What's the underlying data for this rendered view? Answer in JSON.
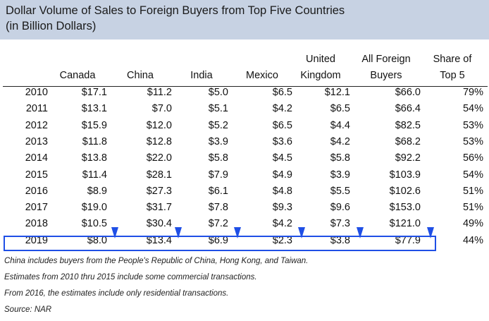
{
  "title": {
    "line1": "Dollar Volume of Sales to Foreign Buyers from Top Five Countries",
    "line2": " (in Billion Dollars)"
  },
  "chart_data": {
    "type": "table",
    "columns": [
      {
        "line1": "",
        "line2": "Canada"
      },
      {
        "line1": "",
        "line2": "China"
      },
      {
        "line1": "",
        "line2": "India"
      },
      {
        "line1": "",
        "line2": "Mexico"
      },
      {
        "line1": "United",
        "line2": "Kingdom"
      },
      {
        "line1": "All Foreign",
        "line2": "Buyers"
      },
      {
        "line1": "Share of",
        "line2": "Top 5"
      }
    ],
    "rows": [
      {
        "year": "2010",
        "values": [
          "$17.1",
          "$11.2",
          "$5.0",
          "$6.5",
          "$12.1",
          "$66.0",
          "79%"
        ]
      },
      {
        "year": "2011",
        "values": [
          "$13.1",
          "$7.0",
          "$5.1",
          "$4.2",
          "$6.5",
          "$66.4",
          "54%"
        ]
      },
      {
        "year": "2012",
        "values": [
          "$15.9",
          "$12.0",
          "$5.2",
          "$6.5",
          "$4.4",
          "$82.5",
          "53%"
        ]
      },
      {
        "year": "2013",
        "values": [
          "$11.8",
          "$12.8",
          "$3.9",
          "$3.6",
          "$4.2",
          "$68.2",
          "53%"
        ]
      },
      {
        "year": "2014",
        "values": [
          "$13.8",
          "$22.0",
          "$5.8",
          "$4.5",
          "$5.8",
          "$92.2",
          "56%"
        ]
      },
      {
        "year": "2015",
        "values": [
          "$11.4",
          "$28.1",
          "$7.9",
          "$4.9",
          "$3.9",
          "$103.9",
          "54%"
        ]
      },
      {
        "year": "2016",
        "values": [
          "$8.9",
          "$27.3",
          "$6.1",
          "$4.8",
          "$5.5",
          "$102.6",
          "51%"
        ]
      },
      {
        "year": "2017",
        "values": [
          "$19.0",
          "$31.7",
          "$7.8",
          "$9.3",
          "$9.6",
          "$153.0",
          "51%"
        ]
      },
      {
        "year": "2018",
        "values": [
          "$10.5",
          "$30.4",
          "$7.2",
          "$4.2",
          "$7.3",
          "$121.0",
          "49%"
        ]
      },
      {
        "year": "2019",
        "values": [
          "$8.0",
          "$13.4",
          "$6.9",
          "$2.3",
          "$3.8",
          "$77.9",
          "44%"
        ]
      }
    ],
    "highlighted_row": "2019",
    "highlight_color": "#1f4fe6",
    "header_band_color": "#c7d2e3"
  },
  "notes": [
    "China includes buyers from the People's Republic of China, Hong Kong, and Taiwan.",
    "Estimates from 2010 thru 2015 include some commercial transactions.",
    "From 2016, the estimates include only residential transactions.",
    "Source: NAR"
  ]
}
